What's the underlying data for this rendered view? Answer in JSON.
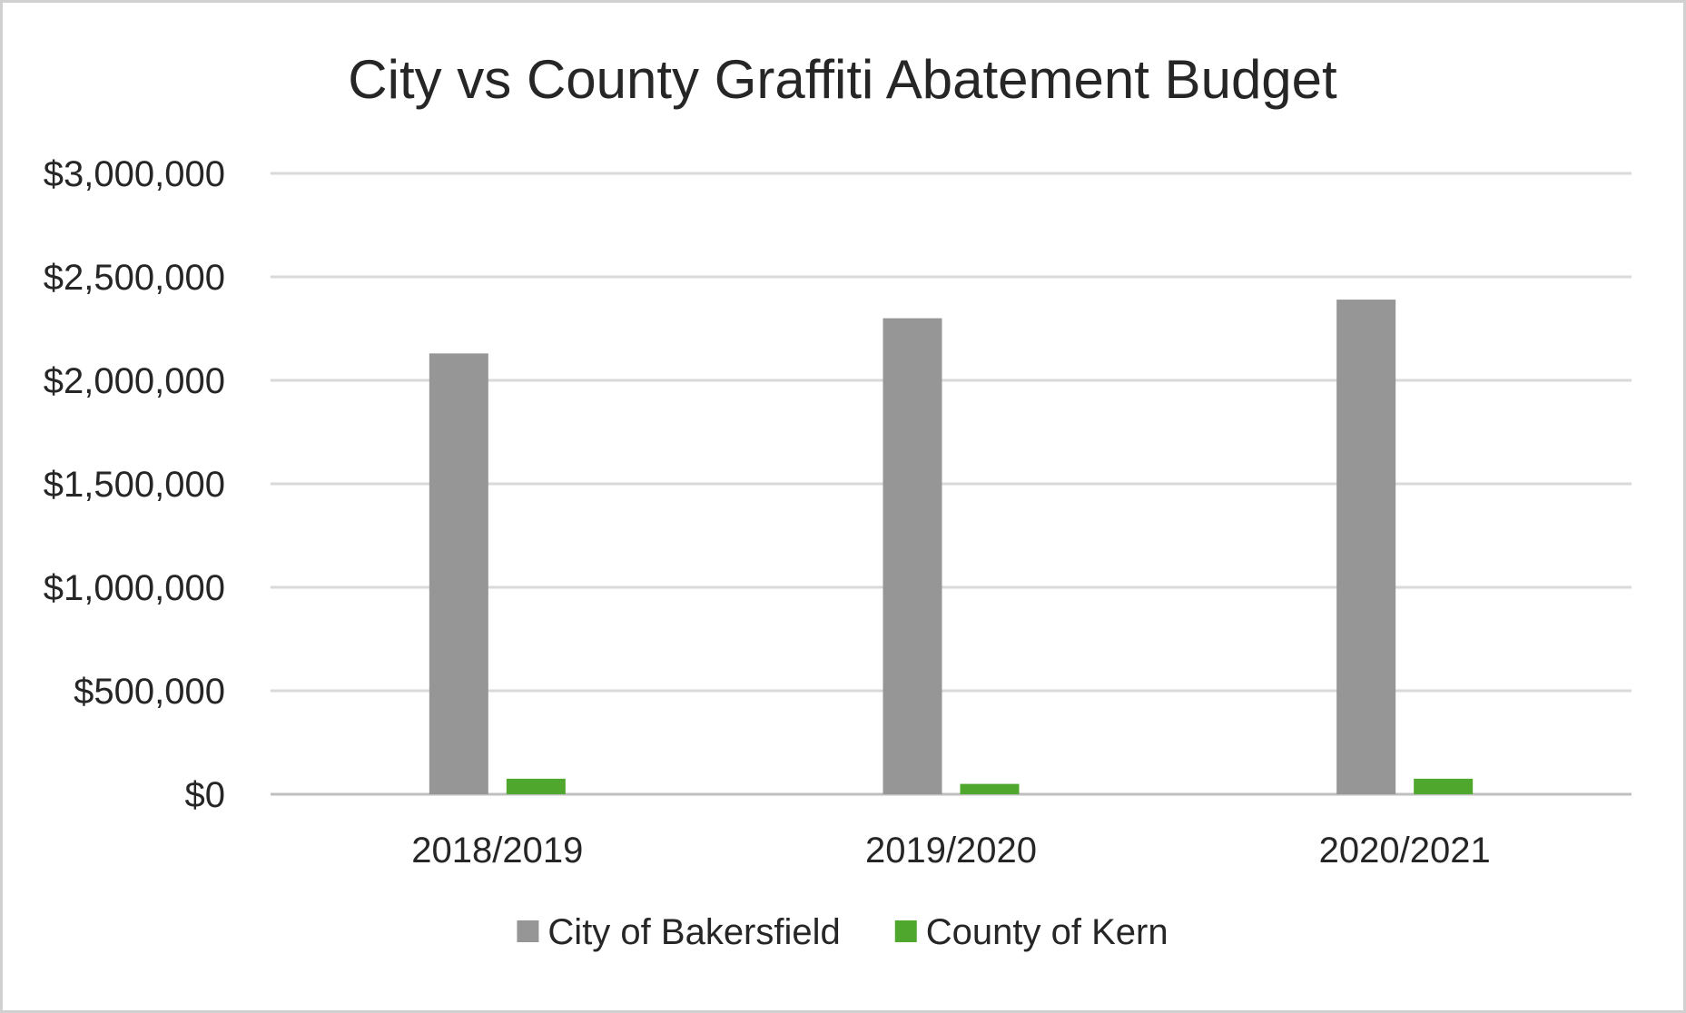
{
  "chart_data": {
    "type": "bar",
    "title": "City vs County Graffiti Abatement Budget",
    "xlabel": "",
    "ylabel": "",
    "categories": [
      "2018/2019",
      "2019/2020",
      "2020/2021"
    ],
    "series": [
      {
        "name": "City of Bakersfield",
        "color": "#969696",
        "values": [
          2130000,
          2300000,
          2390000
        ]
      },
      {
        "name": "County of Kern",
        "color": "#4fa72e",
        "values": [
          75000,
          50000,
          75000
        ]
      }
    ],
    "ylim": [
      0,
      3000000
    ],
    "yticks": [
      0,
      500000,
      1000000,
      1500000,
      2000000,
      2500000,
      3000000
    ],
    "ytick_labels": [
      "$0",
      "$500,000",
      "$1,000,000",
      "$1,500,000",
      "$2,000,000",
      "$2,500,000",
      "$3,000,000"
    ],
    "grid": true,
    "legend_position": "bottom"
  }
}
